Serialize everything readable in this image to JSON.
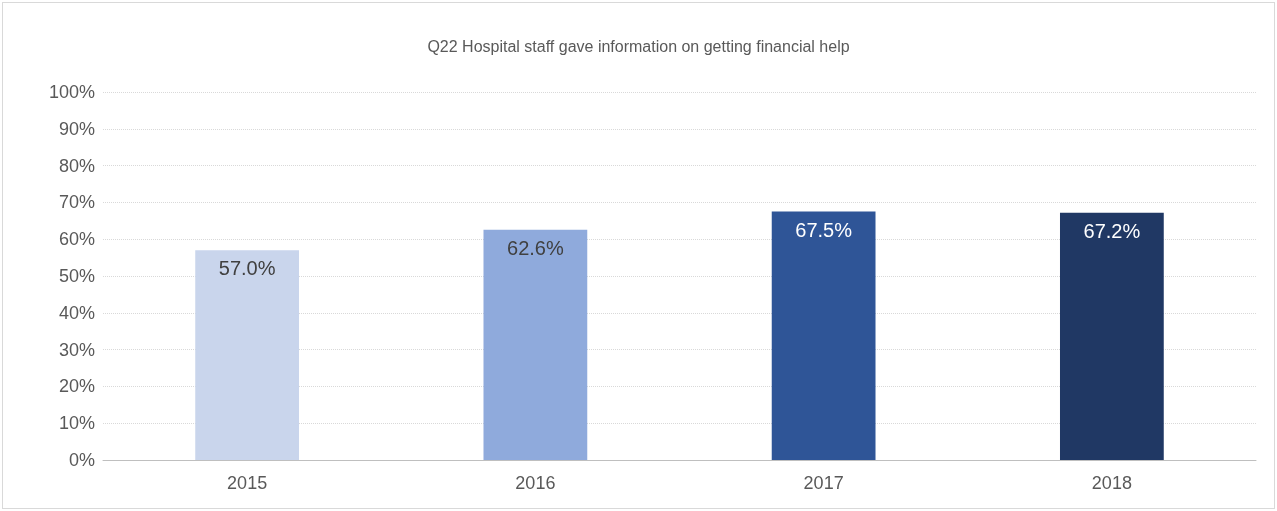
{
  "chart_data": {
    "type": "bar",
    "title": "Q22 Hospital staff gave information on getting financial help",
    "categories": [
      "2015",
      "2016",
      "2017",
      "2018"
    ],
    "values": [
      57.0,
      62.6,
      67.5,
      67.2
    ],
    "value_labels": [
      "57.0%",
      "62.6%",
      "67.5%",
      "67.2%"
    ],
    "colors": [
      "#c9d5ec",
      "#8faadc",
      "#2f5597",
      "#203864"
    ],
    "ylim": [
      0,
      100
    ],
    "yticks": [
      {
        "value": 0,
        "label": "0%"
      },
      {
        "value": 10,
        "label": "10%"
      },
      {
        "value": 20,
        "label": "20%"
      },
      {
        "value": 30,
        "label": "30%"
      },
      {
        "value": 40,
        "label": "40%"
      },
      {
        "value": 50,
        "label": "50%"
      },
      {
        "value": 60,
        "label": "60%"
      },
      {
        "value": 70,
        "label": "70%"
      },
      {
        "value": 80,
        "label": "80%"
      },
      {
        "value": 90,
        "label": "90%"
      },
      {
        "value": 100,
        "label": "100%"
      }
    ],
    "grid": "y"
  }
}
